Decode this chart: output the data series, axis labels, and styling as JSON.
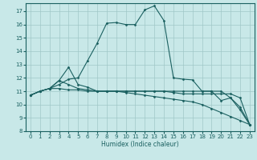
{
  "xlabel": "Humidex (Indice chaleur)",
  "bg_color": "#c8e8e8",
  "grid_color": "#a0c8c8",
  "line_color": "#1a6060",
  "xlim": [
    -0.5,
    23.5
  ],
  "ylim": [
    8,
    17.6
  ],
  "yticks": [
    8,
    9,
    10,
    11,
    12,
    13,
    14,
    15,
    16,
    17
  ],
  "xticks": [
    0,
    1,
    2,
    3,
    4,
    5,
    6,
    7,
    8,
    9,
    10,
    11,
    12,
    13,
    14,
    15,
    16,
    17,
    18,
    19,
    20,
    21,
    22,
    23
  ],
  "series": [
    {
      "x": [
        0,
        1,
        2,
        3,
        4,
        5,
        6,
        7,
        8,
        9,
        10,
        11,
        12,
        13,
        14,
        15,
        16,
        17,
        18,
        19,
        20,
        21,
        22,
        23
      ],
      "y": [
        10.7,
        11.0,
        11.2,
        11.5,
        11.9,
        12.0,
        13.3,
        14.6,
        16.1,
        16.15,
        16.0,
        16.0,
        17.1,
        17.4,
        16.3,
        12.0,
        11.9,
        11.85,
        11.0,
        11.0,
        10.3,
        10.5,
        9.6,
        8.5
      ]
    },
    {
      "x": [
        0,
        1,
        2,
        3,
        4,
        5,
        6,
        7,
        8,
        9,
        10,
        11,
        12,
        13,
        14,
        15,
        16,
        17,
        18,
        19,
        20,
        21,
        22,
        23
      ],
      "y": [
        10.7,
        11.0,
        11.2,
        11.8,
        12.8,
        11.5,
        11.3,
        11.0,
        11.0,
        11.0,
        11.0,
        11.0,
        11.0,
        11.0,
        11.0,
        11.0,
        11.0,
        11.0,
        11.0,
        11.0,
        11.0,
        10.5,
        9.8,
        8.5
      ]
    },
    {
      "x": [
        0,
        1,
        2,
        3,
        4,
        5,
        6,
        7,
        8,
        9,
        10,
        11,
        12,
        13,
        14,
        15,
        16,
        17,
        18,
        19,
        20,
        21,
        22,
        23
      ],
      "y": [
        10.7,
        11.0,
        11.2,
        11.8,
        11.5,
        11.2,
        11.1,
        11.0,
        11.0,
        11.0,
        10.9,
        10.8,
        10.7,
        10.6,
        10.5,
        10.4,
        10.3,
        10.2,
        10.0,
        9.7,
        9.4,
        9.1,
        8.8,
        8.5
      ]
    },
    {
      "x": [
        0,
        1,
        2,
        3,
        4,
        5,
        6,
        7,
        8,
        9,
        10,
        11,
        12,
        13,
        14,
        15,
        16,
        17,
        18,
        19,
        20,
        21,
        22,
        23
      ],
      "y": [
        10.7,
        11.0,
        11.2,
        11.2,
        11.1,
        11.1,
        11.0,
        11.0,
        11.0,
        11.0,
        11.0,
        11.0,
        11.0,
        11.0,
        11.0,
        10.9,
        10.8,
        10.8,
        10.8,
        10.8,
        10.8,
        10.8,
        10.5,
        8.5
      ]
    }
  ]
}
